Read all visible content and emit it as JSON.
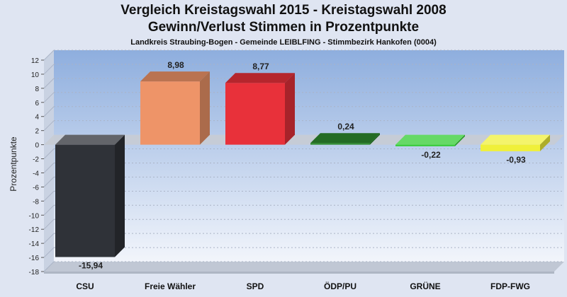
{
  "chart_data": {
    "type": "bar",
    "title": "Vergleich Kreistagswahl 2015 - Kreistagswahl 2008",
    "subtitle": "Gewinn/Verlust Stimmen in Prozentpunkte",
    "subtitle2": "Landkreis Straubing-Bogen - Gemeinde LEIBLFING - Stimmbezirk Hankofen (0004)",
    "xlabel": "",
    "ylabel": "Prozentpunkte",
    "ylim": [
      -18,
      12
    ],
    "yticks": [
      12,
      10,
      8,
      6,
      4,
      2,
      0,
      -2,
      -4,
      -6,
      -8,
      -10,
      -12,
      -14,
      -16,
      -18
    ],
    "categories": [
      "CSU",
      "Freie Wähler",
      "SPD",
      "ÖDP/PU",
      "GRÜNE",
      "FDP-FWG"
    ],
    "values": [
      -15.94,
      8.98,
      8.77,
      0.24,
      -0.22,
      -0.93
    ],
    "value_labels": [
      "-15,94",
      "8,98",
      "8,77",
      "0,24",
      "-0,22",
      "-0,93"
    ],
    "colors": [
      "#2f3238",
      "#ee9468",
      "#e8313a",
      "#2e8a2e",
      "#33cc33",
      "#f0f03a"
    ],
    "grid": true,
    "legend": "none"
  }
}
